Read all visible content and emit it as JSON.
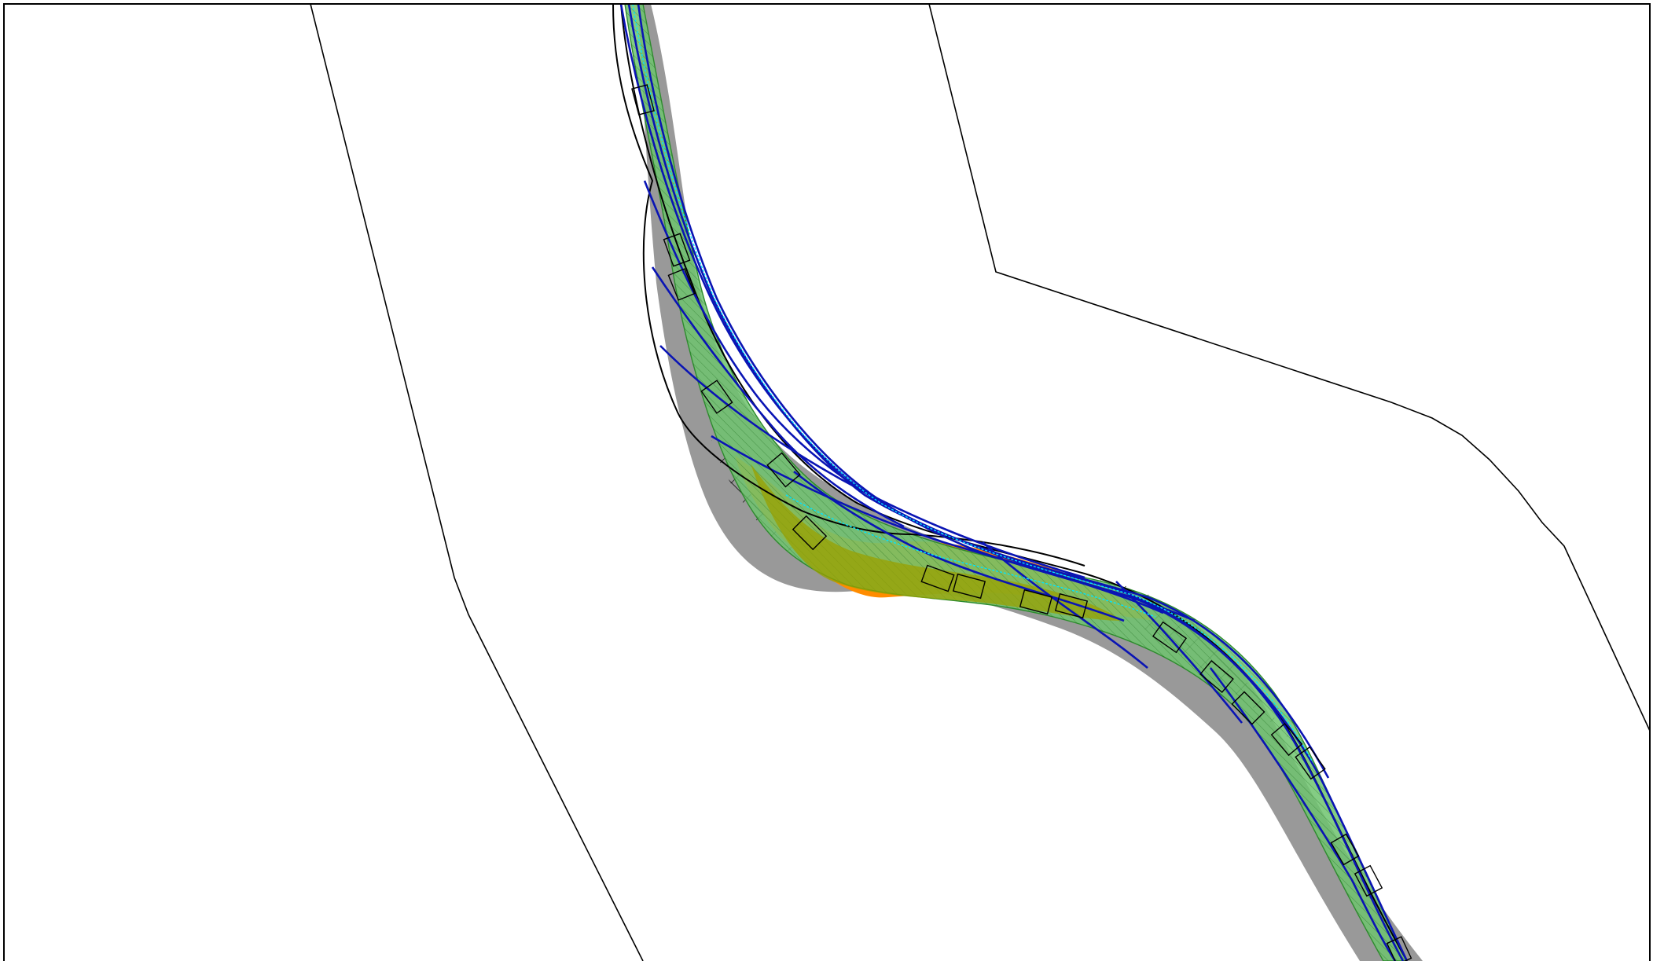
{
  "figure": {
    "kind": "motion-planning-trajectory-plot",
    "background_color": "#ffffff",
    "frame_color": "#000000"
  },
  "colors": {
    "road_boundary": "#000000",
    "occupancy_gray": "#999999",
    "reachable_green": "#6ec36e",
    "reachable_green_edge": "#2e8b2e",
    "conflict_orange": "#ff8c00",
    "overlap_olive": "#9aa000",
    "trajectory_blue": "#0a14b4",
    "trajectory_cyan": "#00e5ff",
    "vehicle_box": "#000000"
  },
  "legend": [],
  "annotations": []
}
